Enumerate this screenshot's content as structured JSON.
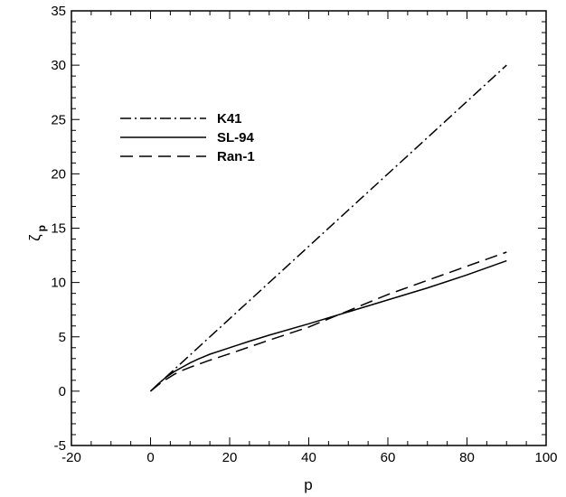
{
  "chart_data": {
    "type": "line",
    "title": "",
    "xlabel": "p",
    "ylabel": "ζ",
    "ylabel_sub": "p",
    "xlim": [
      -20,
      100
    ],
    "ylim": [
      -5,
      35
    ],
    "xticks": [
      -20,
      0,
      20,
      40,
      60,
      80,
      100
    ],
    "yticks": [
      -5,
      0,
      5,
      10,
      15,
      20,
      25,
      30,
      35
    ],
    "grid": false,
    "legend_position": "upper-left",
    "series": [
      {
        "name": "K41",
        "dash": "dashdot",
        "x": [
          0,
          90
        ],
        "y": [
          0,
          30
        ]
      },
      {
        "name": "SL-94",
        "dash": "solid",
        "x": [
          0,
          2,
          4,
          6,
          8,
          10,
          12,
          15,
          20,
          25,
          30,
          40,
          50,
          60,
          70,
          80,
          90
        ],
        "y": [
          0,
          0.7,
          1.3,
          1.8,
          2.2,
          2.6,
          2.95,
          3.4,
          4.0,
          4.6,
          5.15,
          6.2,
          7.3,
          8.4,
          9.5,
          10.7,
          12.0
        ]
      },
      {
        "name": "Ran-1",
        "dash": "dashed",
        "x": [
          0,
          2,
          4,
          6,
          8,
          10,
          15,
          20,
          30,
          40,
          50,
          60,
          70,
          80,
          90
        ],
        "y": [
          0,
          0.6,
          1.1,
          1.55,
          1.9,
          2.2,
          2.85,
          3.45,
          4.7,
          5.9,
          7.4,
          8.9,
          10.2,
          11.5,
          12.8
        ]
      }
    ]
  }
}
